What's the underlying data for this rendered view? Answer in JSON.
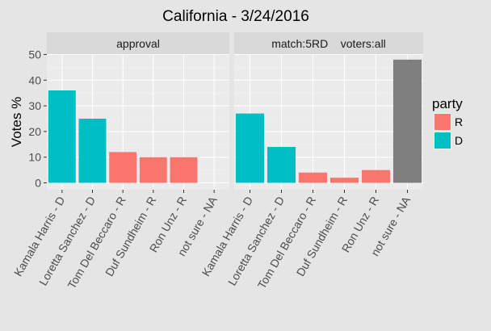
{
  "chart_data": {
    "type": "bar",
    "title": "California - 3/24/2016",
    "xlabel": "",
    "ylabel": "Votes %",
    "ylim": [
      0,
      50
    ],
    "yticks": [
      0,
      10,
      20,
      30,
      40,
      50
    ],
    "grid": true,
    "categories": [
      "Kamala Harris - D",
      "Loretta Sanchez - D",
      "Tom Del Beccaro - R",
      "Duf Sundheim - R",
      "Ron Unz - R",
      "not sure - NA"
    ],
    "category_party": [
      "D",
      "D",
      "R",
      "R",
      "R",
      "NA"
    ],
    "panels": [
      {
        "label": "approval",
        "values": [
          36,
          25,
          12,
          10,
          10,
          null
        ]
      },
      {
        "label": "match:5RD    voters:all",
        "values": [
          27,
          14,
          4,
          2,
          5,
          48
        ]
      }
    ],
    "legend": {
      "title": "party",
      "position": "right",
      "items": [
        {
          "label": "R",
          "color": "#f8766d"
        },
        {
          "label": "D",
          "color": "#00bfc4"
        }
      ]
    },
    "colors": {
      "R": "#f8766d",
      "D": "#00bfc4",
      "NA": "#7f7f7f"
    }
  }
}
